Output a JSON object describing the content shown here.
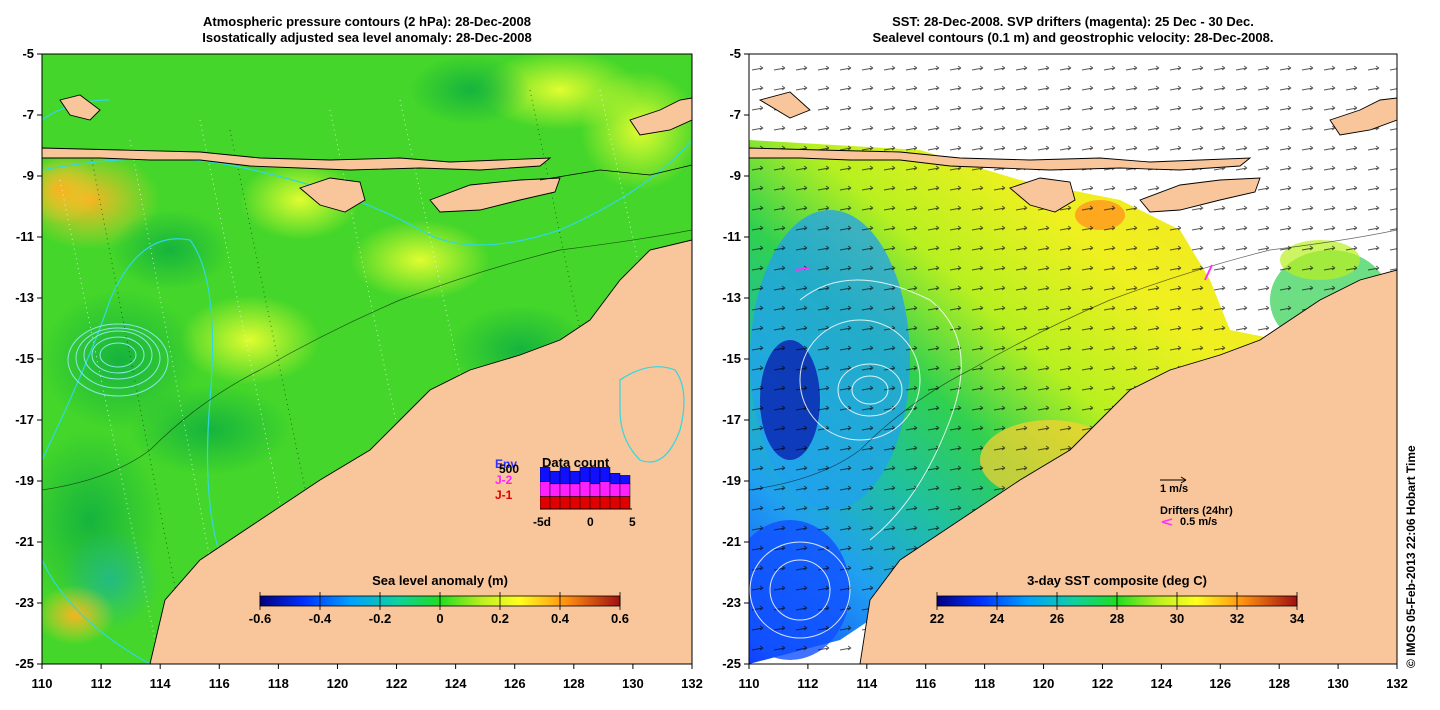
{
  "left_panel": {
    "title_line1": "Atmospheric pressure contours (2 hPa): 28-Dec-2008",
    "title_line2": "Isostatically adjusted sea level anomaly: 28-Dec-2008",
    "x_ticks": [
      "110",
      "112",
      "114",
      "116",
      "118",
      "120",
      "122",
      "124",
      "126",
      "128",
      "130",
      "132"
    ],
    "y_ticks": [
      "-5",
      "-7",
      "-9",
      "-11",
      "-13",
      "-15",
      "-17",
      "-19",
      "-21",
      "-23",
      "-25"
    ],
    "colorbar": {
      "label": "Sea level anomaly (m)",
      "ticks": [
        "-0.6",
        "-0.4",
        "-0.2",
        "0",
        "0.2",
        "0.4",
        "0.6"
      ]
    },
    "data_count": {
      "title": "Data count",
      "legend": [
        {
          "text": "Env",
          "color": "#3030ff"
        },
        {
          "text": "500",
          "color": "#000000"
        },
        {
          "text": "J-2",
          "color": "#ff20ff"
        },
        {
          "text": "J-1",
          "color": "#e00000"
        }
      ],
      "x_ticks": [
        "-5d",
        "0",
        "5"
      ],
      "bars": [
        {
          "j1": 0.3,
          "j2": 0.35,
          "env": 0.35
        },
        {
          "j1": 0.3,
          "j2": 0.3,
          "env": 0.3
        },
        {
          "j1": 0.3,
          "j2": 0.3,
          "env": 0.4
        },
        {
          "j1": 0.3,
          "j2": 0.3,
          "env": 0.3
        },
        {
          "j1": 0.3,
          "j2": 0.35,
          "env": 0.35
        },
        {
          "j1": 0.3,
          "j2": 0.3,
          "env": 0.4
        },
        {
          "j1": 0.3,
          "j2": 0.35,
          "env": 0.35
        },
        {
          "j1": 0.3,
          "j2": 0.3,
          "env": 0.25
        },
        {
          "j1": 0.3,
          "j2": 0.3,
          "env": 0.2
        }
      ]
    }
  },
  "right_panel": {
    "title_line1": "SST: 28-Dec-2008. SVP drifters (magenta): 25 Dec - 30 Dec.",
    "title_line2": "Sealevel contours (0.1 m) and geostrophic velocity: 28-Dec-2008.",
    "x_ticks": [
      "110",
      "112",
      "114",
      "116",
      "118",
      "120",
      "122",
      "124",
      "126",
      "128",
      "130",
      "132"
    ],
    "y_ticks": [
      "-5",
      "-7",
      "-9",
      "-11",
      "-13",
      "-15",
      "-17",
      "-19",
      "-21",
      "-23",
      "-25"
    ],
    "colorbar": {
      "label": "3-day SST composite (deg C)",
      "ticks": [
        "22",
        "24",
        "26",
        "28",
        "30",
        "32",
        "34"
      ]
    },
    "velocity_scale": "1 m/s",
    "drifters_label": "Drifters (24hr)",
    "drifters_scale": "0.5 m/s"
  },
  "credit": "© IMOS 05-Feb-2013 22:06 Hobart Time",
  "colors": {
    "land": "#f9c59a",
    "coast": "#000000",
    "pressure_contour": "#30d8e0",
    "sla_mid": "#22dd22"
  }
}
